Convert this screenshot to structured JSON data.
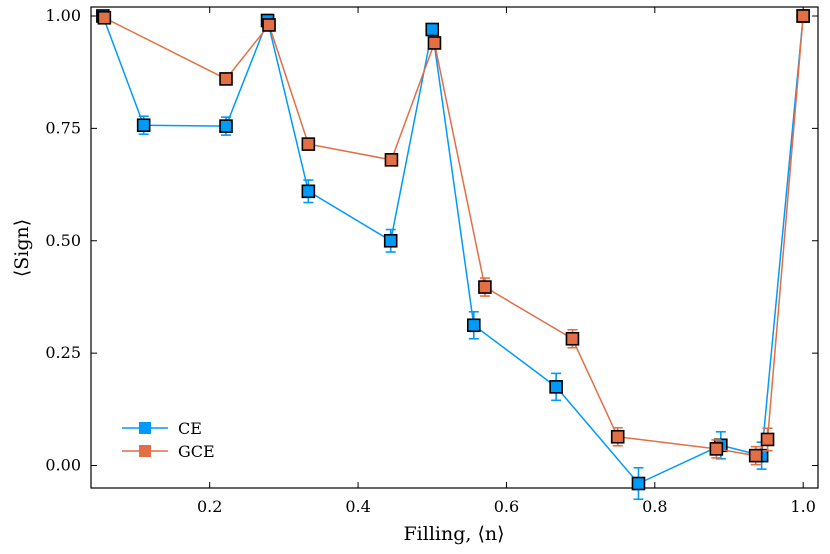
{
  "chart_data": {
    "type": "scatter",
    "title": "",
    "xlabel": "Filling, ⟨n⟩",
    "ylabel": "⟨Sign⟩",
    "xlim": [
      0.04,
      1.02
    ],
    "ylim": [
      -0.05,
      1.02
    ],
    "xticks": [
      0.2,
      0.4,
      0.6,
      0.8,
      1.0
    ],
    "xtick_labels": [
      "0.2",
      "0.4",
      "0.6",
      "0.8",
      "1.0"
    ],
    "yticks": [
      0.0,
      0.25,
      0.5,
      0.75,
      1.0
    ],
    "ytick_labels": [
      "0.00",
      "0.25",
      "0.50",
      "0.75",
      "1.00"
    ],
    "grid": false,
    "legend_position": "bottom-left",
    "series": [
      {
        "name": "CE",
        "color": "#009AFA",
        "marker": "square",
        "x": [
          0.056,
          0.111,
          0.222,
          0.278,
          0.333,
          0.444,
          0.5,
          0.556,
          0.667,
          0.778,
          0.889,
          0.944,
          1.0
        ],
        "y": [
          1.0,
          0.757,
          0.755,
          0.99,
          0.61,
          0.5,
          0.97,
          0.312,
          0.175,
          -0.04,
          0.045,
          0.022,
          1.0
        ],
        "err": [
          0.0,
          0.02,
          0.02,
          0.005,
          0.025,
          0.025,
          0.008,
          0.03,
          0.03,
          0.035,
          0.03,
          0.03,
          0.0
        ]
      },
      {
        "name": "GCE",
        "color": "#E26F46",
        "marker": "square",
        "x": [
          0.058,
          0.222,
          0.28,
          0.333,
          0.445,
          0.503,
          0.571,
          0.689,
          0.75,
          0.883,
          0.936,
          0.952,
          1.0
        ],
        "y": [
          0.996,
          0.86,
          0.98,
          0.715,
          0.68,
          0.94,
          0.397,
          0.282,
          0.064,
          0.037,
          0.022,
          0.058,
          1.0
        ],
        "err": [
          0.004,
          0.008,
          0.006,
          0.012,
          0.012,
          0.008,
          0.02,
          0.02,
          0.02,
          0.02,
          0.02,
          0.025,
          0.0
        ]
      }
    ]
  }
}
